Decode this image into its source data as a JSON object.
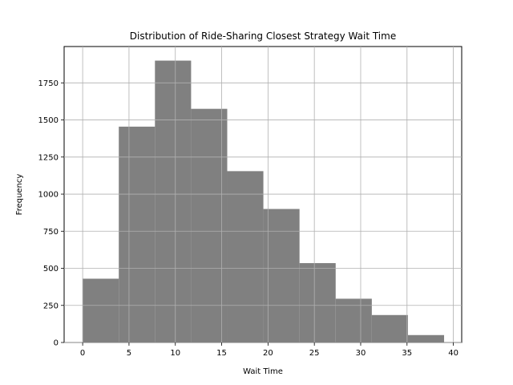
{
  "chart_data": {
    "type": "histogram",
    "title": "Distribution of Ride-Sharing Closest Strategy Wait Time",
    "xlabel": "Wait Time",
    "ylabel": "Frequency",
    "xlim": [
      -2,
      40.9
    ],
    "ylim": [
      0,
      1995
    ],
    "xticks": [
      0,
      5,
      10,
      15,
      20,
      25,
      30,
      35,
      40
    ],
    "yticks": [
      0,
      250,
      500,
      750,
      1000,
      1250,
      1500,
      1750
    ],
    "grid": true,
    "bar_color": "#808080",
    "bins": [
      {
        "start": 0.0,
        "end": 3.9,
        "count": 430
      },
      {
        "start": 3.9,
        "end": 7.8,
        "count": 1455
      },
      {
        "start": 7.8,
        "end": 11.7,
        "count": 1900
      },
      {
        "start": 11.7,
        "end": 15.6,
        "count": 1575
      },
      {
        "start": 15.6,
        "end": 19.5,
        "count": 1155
      },
      {
        "start": 19.5,
        "end": 23.4,
        "count": 900
      },
      {
        "start": 23.4,
        "end": 27.3,
        "count": 535
      },
      {
        "start": 27.3,
        "end": 31.2,
        "count": 295
      },
      {
        "start": 31.2,
        "end": 35.1,
        "count": 185
      },
      {
        "start": 35.1,
        "end": 39.0,
        "count": 50
      }
    ]
  }
}
